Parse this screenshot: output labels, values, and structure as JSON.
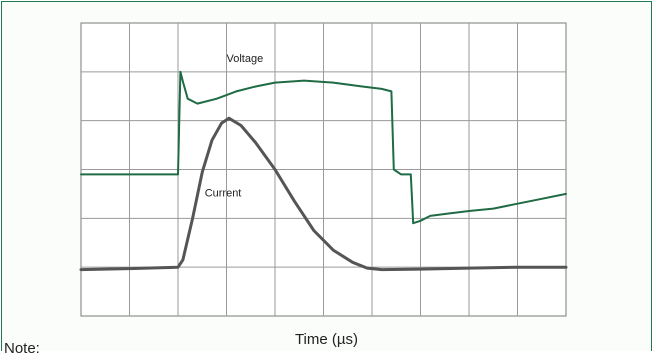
{
  "chart_data": {
    "type": "line",
    "title": "",
    "xlabel": "Time (µs)",
    "ylabel": "",
    "grid": true,
    "grid_divisions": {
      "x": 10,
      "y": 6
    },
    "xlim": [
      0,
      10
    ],
    "ylim": [
      0,
      6
    ],
    "series": [
      {
        "name": "Voltage",
        "color": "#1f6b45",
        "line_width": 2,
        "points": [
          [
            0,
            2.9
          ],
          [
            2.0,
            2.9
          ],
          [
            2.05,
            5.0
          ],
          [
            2.1,
            4.8
          ],
          [
            2.2,
            4.45
          ],
          [
            2.4,
            4.35
          ],
          [
            2.8,
            4.45
          ],
          [
            3.2,
            4.6
          ],
          [
            3.6,
            4.7
          ],
          [
            4.0,
            4.78
          ],
          [
            4.6,
            4.82
          ],
          [
            5.2,
            4.78
          ],
          [
            5.8,
            4.7
          ],
          [
            6.2,
            4.65
          ],
          [
            6.4,
            4.6
          ],
          [
            6.45,
            3.0
          ],
          [
            6.6,
            2.9
          ],
          [
            6.8,
            2.9
          ],
          [
            6.85,
            1.9
          ],
          [
            7.0,
            1.95
          ],
          [
            7.2,
            2.05
          ],
          [
            7.6,
            2.1
          ],
          [
            8.0,
            2.15
          ],
          [
            8.5,
            2.2
          ],
          [
            9.0,
            2.3
          ],
          [
            9.5,
            2.4
          ],
          [
            10.0,
            2.5
          ]
        ]
      },
      {
        "name": "Current",
        "color": "#555555",
        "line_width": 3,
        "points": [
          [
            0,
            0.95
          ],
          [
            1.0,
            0.97
          ],
          [
            2.0,
            1.0
          ],
          [
            2.1,
            1.15
          ],
          [
            2.3,
            2.0
          ],
          [
            2.5,
            2.95
          ],
          [
            2.7,
            3.6
          ],
          [
            2.9,
            3.95
          ],
          [
            3.05,
            4.05
          ],
          [
            3.3,
            3.9
          ],
          [
            3.6,
            3.55
          ],
          [
            4.0,
            3.0
          ],
          [
            4.4,
            2.35
          ],
          [
            4.8,
            1.75
          ],
          [
            5.2,
            1.35
          ],
          [
            5.6,
            1.1
          ],
          [
            5.9,
            0.98
          ],
          [
            6.2,
            0.95
          ],
          [
            7.0,
            0.96
          ],
          [
            8.0,
            0.98
          ],
          [
            9.0,
            1.0
          ],
          [
            10.0,
            1.0
          ]
        ]
      }
    ],
    "annotations": [
      {
        "text": "Voltage",
        "series": "Voltage",
        "x": 3.0,
        "y": 5.2
      },
      {
        "text": "Current",
        "series": "Current",
        "x": 2.55,
        "y": 2.45
      }
    ]
  },
  "note_label": "Note:"
}
